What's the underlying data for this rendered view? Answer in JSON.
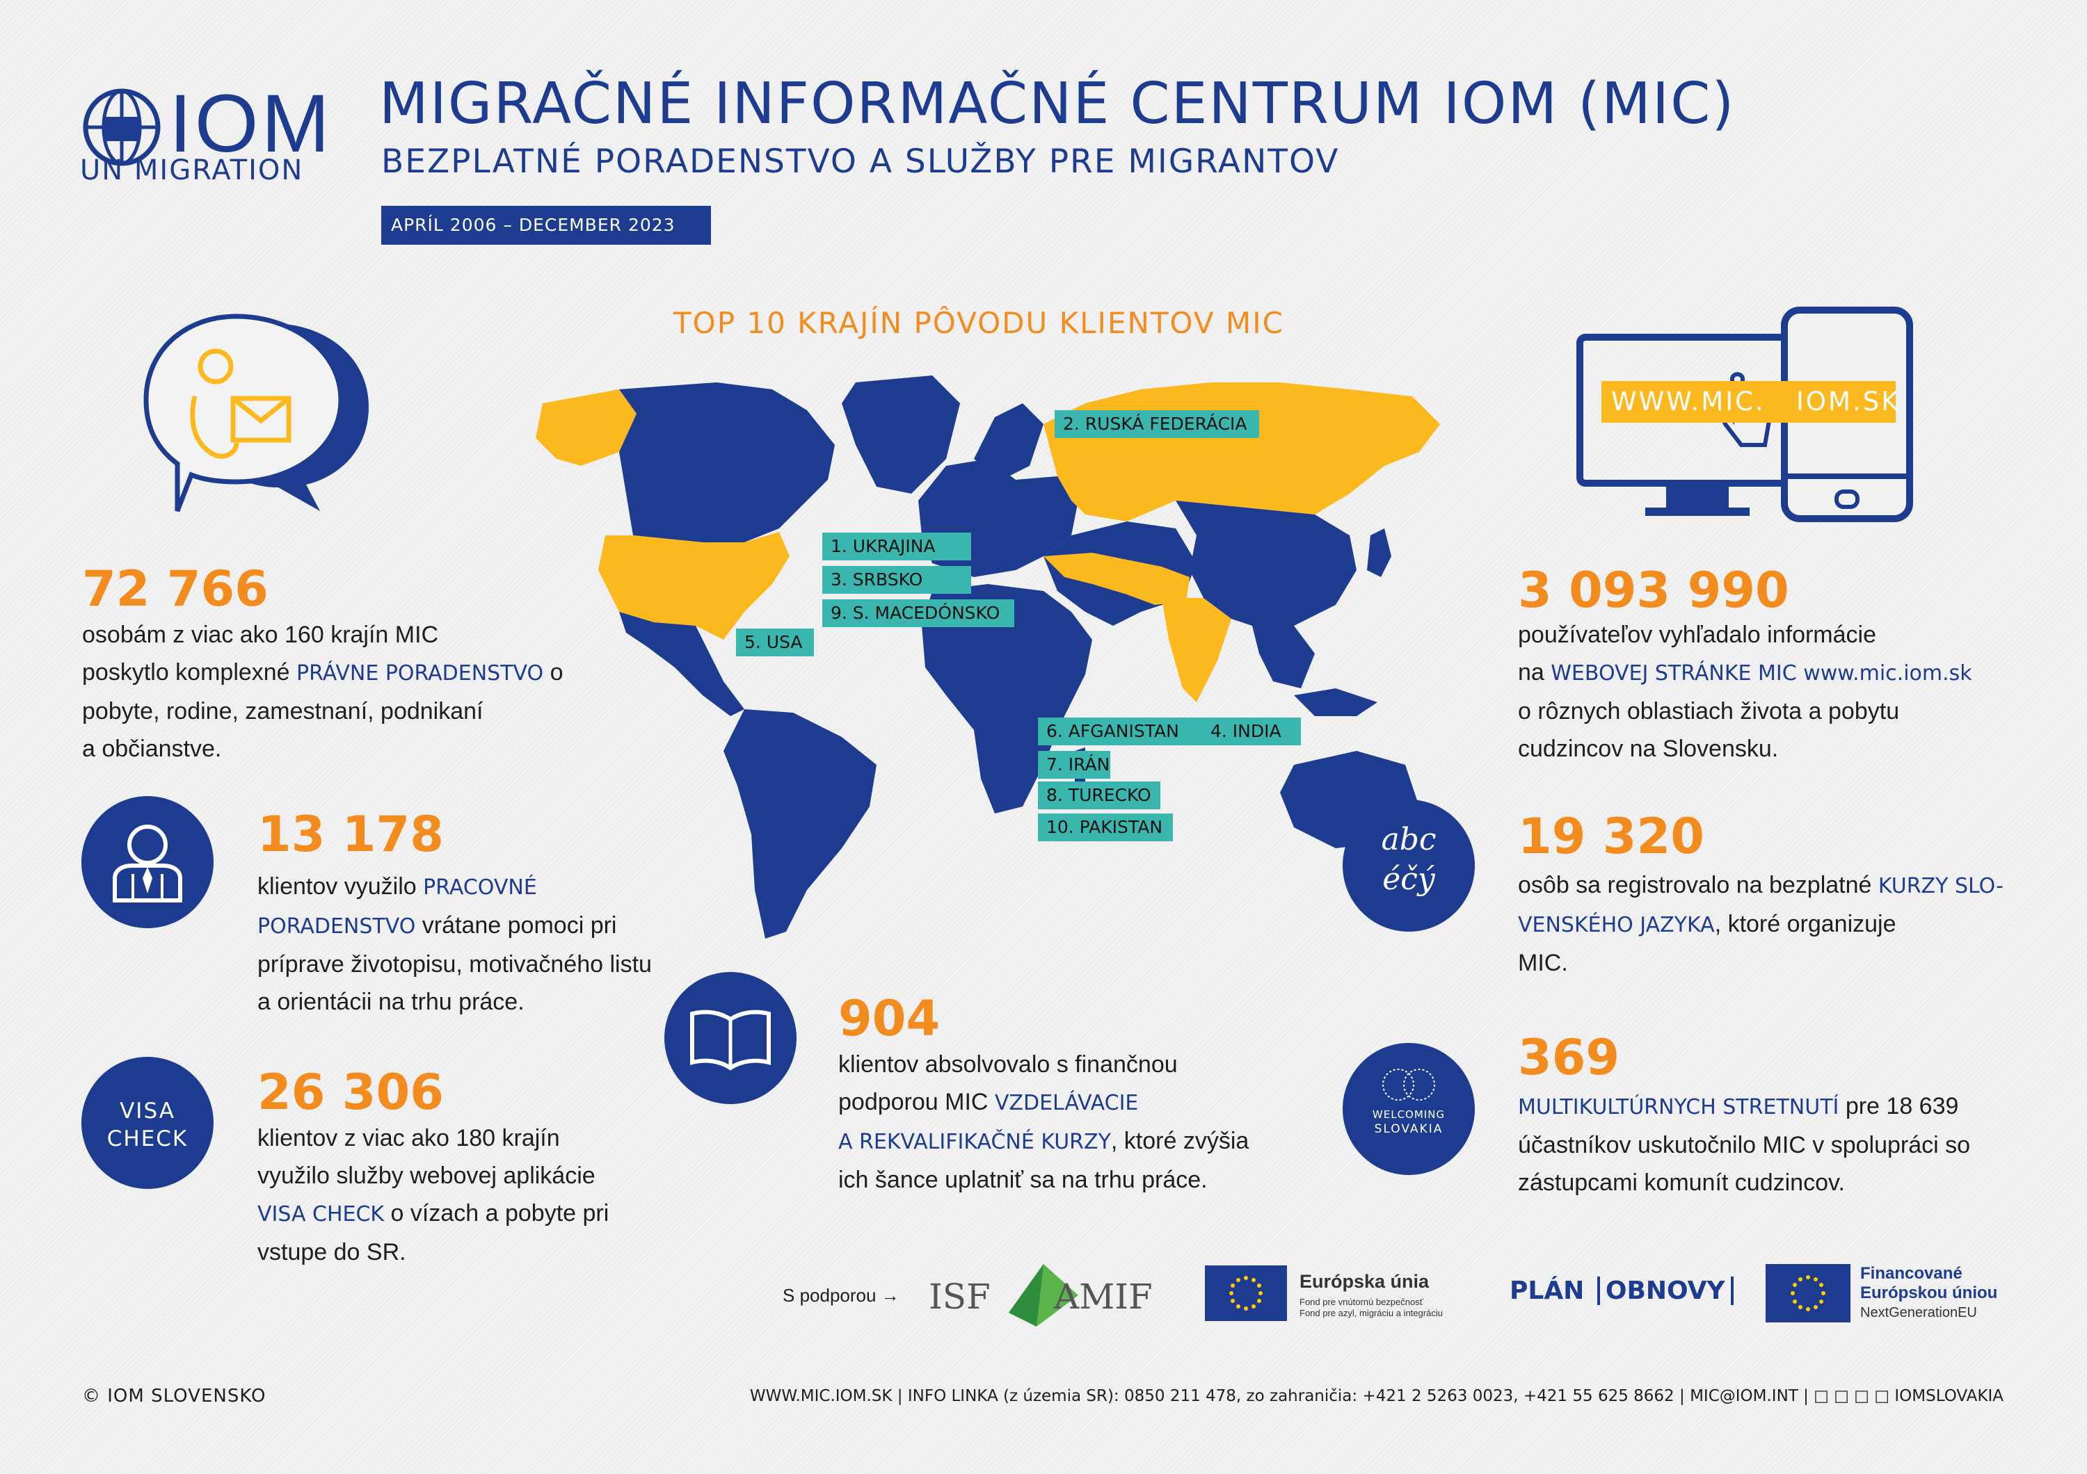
{
  "header": {
    "logo_text": "IOM",
    "logo_sub": "UN MIGRATION",
    "title": "MIGRAČNÉ INFORMAČNÉ CENTRUM IOM (MIC)",
    "subtitle": "BEZPLATNÉ PORADENSTVO A SLUŽBY PRE MIGRANTOV",
    "date_badge": "APRÍL 2006 – DECEMBER 2023"
  },
  "map": {
    "title": "TOP 10 KRAJÍN PÔVODU KLIENTOV MIC",
    "labels": [
      "2. RUSKÁ FEDERÁCIA",
      "1. UKRAJINA",
      "3. SRBSKO",
      "9. S. MACEDÓNSKO",
      "5. USA",
      "6. AFGANISTAN",
      "4. INDIA",
      "7. IRÁN",
      "8. TURECKO",
      "10. PAKISTAN"
    ]
  },
  "stats": {
    "legal": {
      "number": "72 766",
      "t1": "osobám z viac ako 160 krajín MIC",
      "t2a": "poskytlo komplexné ",
      "t2b": "PRÁVNE PORADENSTVO",
      "t2c": " o",
      "t3": "pobyte, rodine, zamestnaní, podnikaní",
      "t4": "a  občianstve."
    },
    "work": {
      "number": "13 178",
      "t1a": "klientov využilo ",
      "t1b": "PRACOVNÉ",
      "t2a": "PORADENSTVO",
      "t2b": " vrátane pomoci pri",
      "t3": "príprave životopisu, motivačného listu",
      "t4": "a orientácii na trhu práce."
    },
    "visa": {
      "icon_l1": "VISA",
      "icon_l2": "CHECK",
      "number": "26 306",
      "t1": "klientov z viac ako 180 krajín",
      "t2": "využilo služby webovej aplikácie",
      "t3a": "VISA CHECK",
      "t3b": " o vízach a pobyte pri",
      "t4": "vstupe do SR."
    },
    "courses": {
      "number": "904",
      "t1": "klientov absolvovalo s finančnou",
      "t2a": "podporou MIC ",
      "t2b": "VZDELÁVACIE",
      "t3a": "A REKVALIFIKAČNÉ KURZY",
      "t3b": ", ktoré zvýšia",
      "t4": "ich šance uplatniť sa na trhu práce."
    },
    "web": {
      "banner": "WWW.MIC.   IOM.SK",
      "number": "3 093 990",
      "t1": "používateľov vyhľadalo informácie",
      "t2a": "na ",
      "t2b": "WEBOVEJ STRÁNKE MIC www.mic.iom.sk",
      "t3": "o rôznych oblastiach života a pobytu",
      "t4": "cudzincov na Slovensku."
    },
    "language": {
      "icon_l1": "abc",
      "icon_l2": "éčý",
      "number": "19 320",
      "t1a": "osôb sa registrovalo na bezplatné ",
      "t1b": "KURZY SLO-",
      "t2a": "VENSKÉHO JAZYKA",
      "t2b": ", ktoré organizuje",
      "t3": "MIC."
    },
    "meetings": {
      "icon_l1": "WELCOMING",
      "icon_l2": "SLOVAKIA",
      "number": "369",
      "t1a": "MULTIKULTÚRNYCH STRETNUTÍ",
      "t1b": " pre 18 639",
      "t2": "účastníkov uskutočnilo MIC v spolupráci so",
      "t3": "zástupcami komunít cudzincov."
    }
  },
  "sponsors": {
    "intro": "S podporou →",
    "isf": "ISF",
    "amif": "AMIF",
    "eu_title": "Európska únia",
    "eu_l1": "Fond pre vnútornú bezpečnosť",
    "eu_l2": "Fond pre azyl, migráciu a integráciu",
    "plan": "PLÁN",
    "obnovy": "OBNOVY",
    "ngeu_l1": "Financované",
    "ngeu_l2": "Európskou úniou",
    "ngeu_l3": "NextGenerationEU"
  },
  "footer": {
    "copyright": "© IOM SLOVENSKO",
    "contact": "WWW.MIC.IOM.SK | INFO LINKA (z územia SR): 0850 211 478, zo zahraničia: +421 2 5263 0023, +421 55 625 8662 |  MIC@IOM.INT | □ □ □ □ IOMSLOVAKIA"
  },
  "colors": {
    "navy": "#1d3c8f",
    "orange": "#f28c1e",
    "yellow": "#fbb91f",
    "teal": "#3bb6ae"
  }
}
